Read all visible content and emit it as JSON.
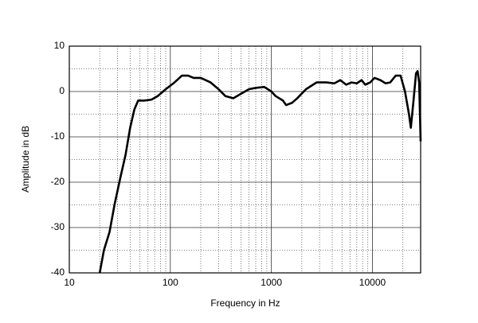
{
  "chart_data": {
    "type": "line",
    "x_label": "Frequency in Hz",
    "y_label": "Amplitude in dB",
    "xscale": "log",
    "grid": true,
    "xlim": [
      10,
      30000
    ],
    "ylim": [
      -40,
      10
    ],
    "xticks": [
      10,
      100,
      1000,
      10000
    ],
    "yticks": [
      10,
      0,
      -10,
      -20,
      -30,
      -40
    ],
    "x": [
      20,
      22,
      25,
      28,
      32,
      36,
      40,
      44,
      48,
      55,
      65,
      75,
      90,
      110,
      130,
      150,
      170,
      200,
      250,
      300,
      350,
      420,
      500,
      600,
      700,
      850,
      1000,
      1100,
      1300,
      1400,
      1600,
      1800,
      2200,
      2800,
      3500,
      4200,
      4800,
      5500,
      6200,
      7000,
      7800,
      8500,
      9500,
      10500,
      12000,
      13500,
      15000,
      17000,
      19000,
      21000,
      23000,
      24000,
      25500,
      27000,
      28000,
      29000,
      30000
    ],
    "series": [
      {
        "color": "#000000",
        "values": [
          -40,
          -35,
          -31,
          -25,
          -19,
          -14,
          -8,
          -4,
          -2,
          -2,
          -1.8,
          -1,
          0.5,
          2,
          3.5,
          3.5,
          3,
          3,
          2,
          0.5,
          -1,
          -1.5,
          -0.5,
          0.5,
          0.8,
          1,
          0,
          -1,
          -2,
          -3,
          -2.5,
          -1.5,
          0.5,
          2,
          2,
          1.8,
          2.5,
          1.5,
          2,
          1.8,
          2.5,
          1.5,
          2,
          3,
          2.5,
          1.8,
          2,
          3.5,
          3.5,
          0,
          -5,
          -8,
          -2,
          4,
          4.5,
          2,
          -11
        ]
      }
    ]
  }
}
